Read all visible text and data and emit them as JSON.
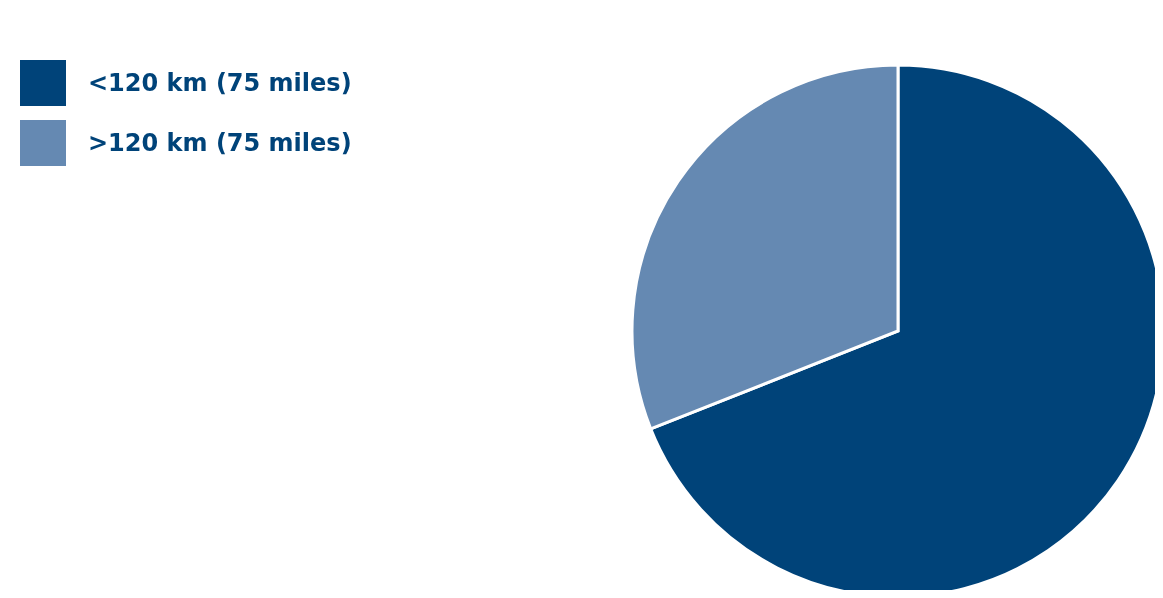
{
  "chart_data": {
    "type": "pie",
    "categories": [
      "<120 km (75 miles)",
      ">120 km (75 miles)"
    ],
    "values": [
      69,
      31
    ],
    "colors": [
      "#004379",
      "#6589b2"
    ],
    "legend": "top left"
  }
}
